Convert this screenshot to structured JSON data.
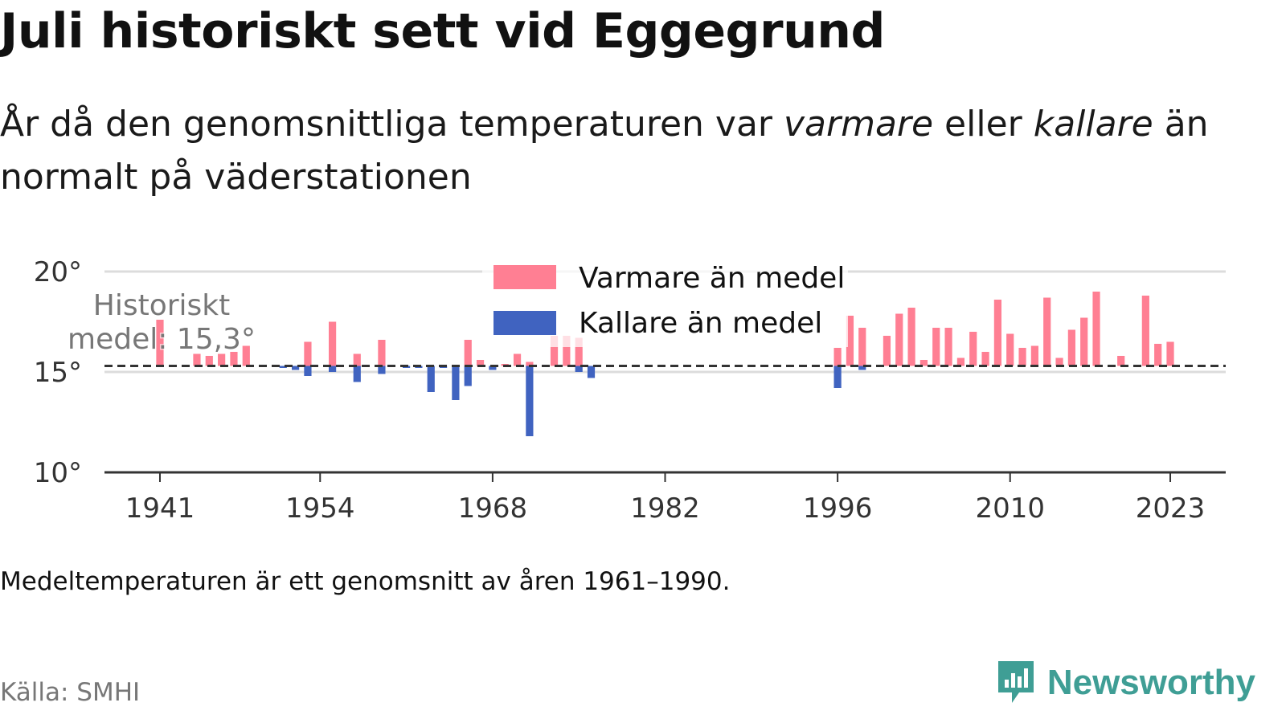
{
  "title": "Juli historiskt sett vid Eggegrund",
  "subtitle": {
    "part1": "År då den genomsnittliga temperaturen var ",
    "warm_word": "varmare",
    "part2": " eller ",
    "cold_word": "kallare",
    "part3": " än normalt på väderstationen"
  },
  "note": "Medeltemperaturen är ett genomsnitt av åren 1961–1990.",
  "source": "Källa: SMHI",
  "brand": "Newsworthy",
  "colors": {
    "warm": "#ff7f93",
    "cold": "#4063c0",
    "grid": "#dcdcdc",
    "axis": "#333333",
    "mean_line": "#333333",
    "brand": "#3f9e95"
  },
  "chart_data": {
    "type": "bar",
    "baseline": 15.3,
    "baseline_label_line1": "Historiskt",
    "baseline_label_line2": "medel: 15,3°",
    "ylim": [
      10,
      20
    ],
    "xlim": [
      1936.5,
      2027.5
    ],
    "y_ticks": [
      10,
      15,
      20
    ],
    "y_tick_labels": [
      "10°",
      "15°",
      "20°"
    ],
    "x_ticks": [
      1941,
      1954,
      1968,
      1982,
      1996,
      2010,
      2023
    ],
    "x_tick_labels": [
      "1941",
      "1954",
      "1968",
      "1982",
      "1996",
      "2010",
      "2023"
    ],
    "legend": {
      "warm": "Varmare än medel",
      "cold": "Kallare än medel",
      "position": "top-center"
    },
    "series": [
      {
        "name": "Varmare än medel",
        "key": "warm",
        "x": [
          1941,
          1944,
          1945,
          1946,
          1947,
          1948,
          1953,
          1955,
          1957,
          1959,
          1966,
          1967,
          1969,
          1970,
          1971,
          1973,
          1974,
          1975,
          1996,
          1997,
          1998,
          2000,
          2001,
          2002,
          2003,
          2004,
          2005,
          2006,
          2007,
          2008,
          2009,
          2010,
          2011,
          2012,
          2013,
          2014,
          2015,
          2016,
          2017,
          2019,
          2021,
          2022,
          2023
        ],
        "values": [
          17.6,
          15.9,
          15.8,
          15.9,
          16.0,
          16.3,
          16.5,
          17.5,
          15.9,
          16.6,
          16.6,
          15.6,
          15.4,
          15.9,
          15.5,
          16.8,
          16.8,
          16.7,
          16.2,
          17.8,
          17.2,
          16.8,
          17.9,
          18.2,
          15.6,
          17.2,
          17.2,
          15.7,
          17.0,
          16.0,
          18.6,
          16.9,
          16.2,
          16.3,
          18.7,
          15.7,
          17.1,
          17.7,
          19.0,
          15.8,
          18.8,
          16.4,
          16.5
        ]
      },
      {
        "name": "Kallare än medel",
        "key": "cold",
        "x": [
          1951,
          1952,
          1953,
          1955,
          1957,
          1959,
          1961,
          1962,
          1963,
          1964,
          1965,
          1966,
          1968,
          1971,
          1975,
          1976,
          1996,
          1998
        ],
        "values": [
          15.2,
          15.1,
          14.8,
          15.0,
          14.5,
          14.9,
          15.2,
          15.2,
          14.0,
          15.2,
          13.6,
          14.3,
          15.1,
          11.8,
          15.0,
          14.7,
          14.2,
          15.1
        ]
      }
    ]
  }
}
